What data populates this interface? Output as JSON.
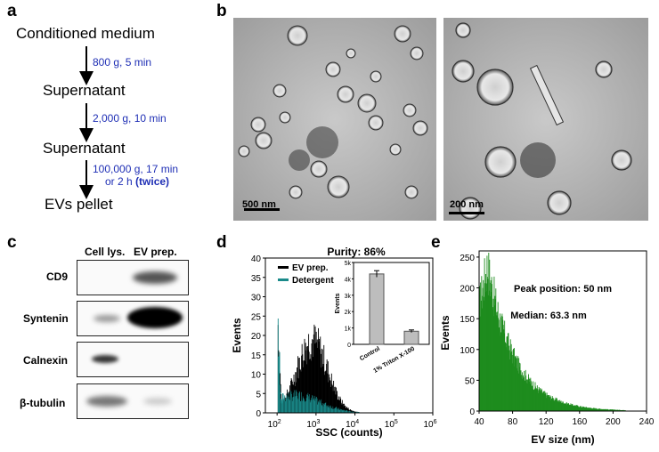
{
  "panels": {
    "a": "a",
    "b": "b",
    "c": "c",
    "d": "d",
    "e": "e"
  },
  "flow": {
    "nodes": [
      "Conditioned medium",
      "Supernatant",
      "Supernatant",
      "EVs pellet"
    ],
    "steps": [
      {
        "line1": "800 g, 5 min"
      },
      {
        "line1": "2,000 g, 10 min"
      },
      {
        "line1": "100,000 g, 17 min",
        "line2a": "or 2 h ",
        "line2b": "(twice)"
      }
    ]
  },
  "micrographs": [
    {
      "scale": "500 nm"
    },
    {
      "scale": "200 nm"
    }
  ],
  "western": {
    "columns": [
      "Cell lys.",
      "EV prep."
    ],
    "rows": [
      "CD9",
      "Syntenin",
      "Calnexin",
      "β-tubulin"
    ],
    "band_intensity": [
      [
        0.0,
        0.75
      ],
      [
        0.35,
        1.0
      ],
      [
        0.55,
        0.0
      ],
      [
        0.5,
        0.15
      ]
    ]
  },
  "chart_data": [
    {
      "type": "histogram",
      "panel": "d",
      "title": "Purity: 86%",
      "xlabel": "SSC (counts)",
      "ylabel": "Events",
      "xscale": "log",
      "xlim": [
        50,
        1000000
      ],
      "ylim": [
        0,
        40
      ],
      "xticks": [
        "10^2",
        "10^3",
        "10^4",
        "10^5",
        "10^6"
      ],
      "yticks": [
        "0",
        "5",
        "10",
        "15",
        "20",
        "25",
        "30",
        "35",
        "40"
      ],
      "legend": [
        "EV prep.",
        "Detergent"
      ],
      "series": [
        {
          "name": "EV prep.",
          "color": "#000000",
          "peak_x": 120,
          "peak_y": 38,
          "mode_x": 800,
          "mode_y": 24
        },
        {
          "name": "Detergent",
          "color": "#1a8a8a",
          "peak_x": 120,
          "peak_y": 35,
          "mode_x": 300,
          "mode_y": 6
        }
      ],
      "inset": {
        "type": "bar",
        "categories": [
          "Control",
          "1% Triton X-100"
        ],
        "values": [
          4300,
          800
        ],
        "errors": [
          200,
          80
        ],
        "ylabel": "Events",
        "yticks": [
          "0",
          "1k",
          "2k",
          "3k",
          "4k",
          "5k"
        ],
        "ylim": [
          0,
          5000
        ]
      }
    },
    {
      "type": "histogram",
      "panel": "e",
      "xlabel": "EV size (nm)",
      "ylabel": "Events",
      "xlim": [
        40,
        240
      ],
      "ylim": [
        0,
        260
      ],
      "xticks": [
        "40",
        "80",
        "120",
        "160",
        "200",
        "240"
      ],
      "yticks": [
        "0",
        "50",
        "100",
        "150",
        "200",
        "250"
      ],
      "color": "#1e8c1e",
      "annotations": [
        "Peak position: 50 nm",
        "Median: 63.3 nm"
      ],
      "peak_x": 50,
      "peak_y": 255
    }
  ]
}
